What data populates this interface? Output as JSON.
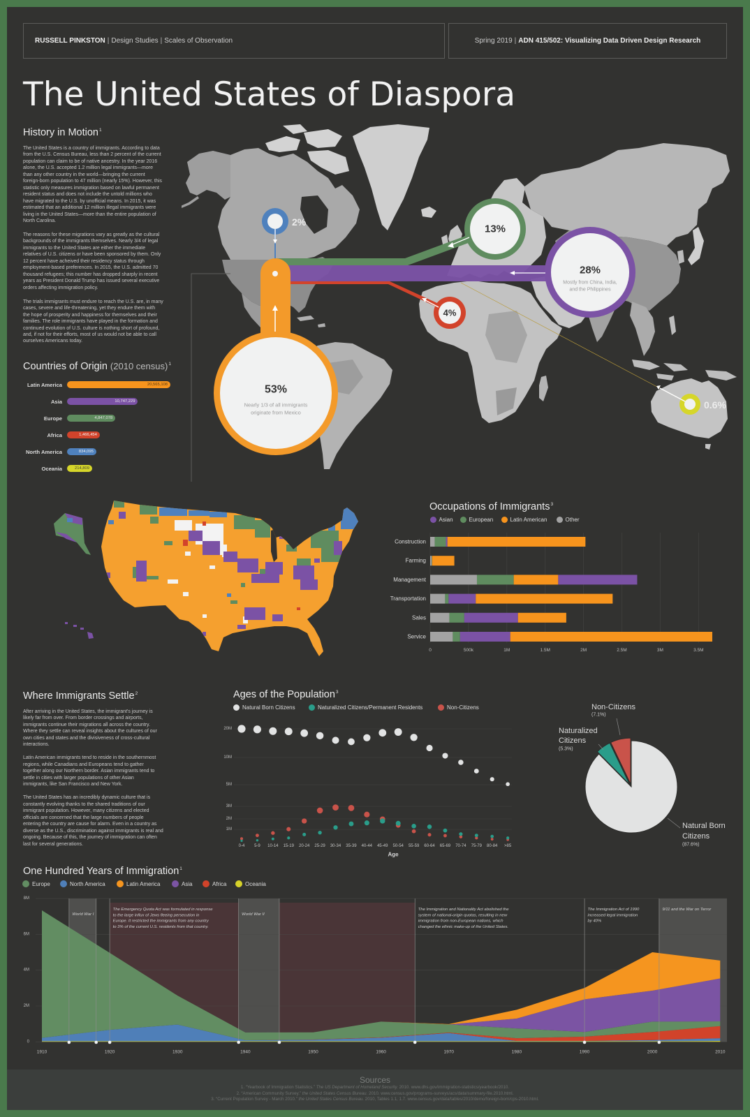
{
  "header": {
    "author": "RUSSELL PINKSTON",
    "separator": "|",
    "dept": "Design Studies",
    "project": "Scales of Observation",
    "term": "Spring 2019",
    "course": "ADN 415/502: Visualizing Data Driven Design Research"
  },
  "title": "The United States of Diaspora",
  "colors": {
    "background": "#323230",
    "border": "#4a7a4c",
    "latin_america": "#f7941d",
    "asia": "#7b52a5",
    "europe": "#5f8c5f",
    "africa": "#d2432b",
    "north_america": "#4f81bd",
    "oceania": "#d6d62a",
    "other": "#a3a3a3",
    "natural_born": "#e2e3e3",
    "naturalized": "#2a9d8a",
    "non_citizen": "#c9534a"
  },
  "history": {
    "heading": "History in Motion",
    "sup": "1",
    "paragraphs": [
      [
        "The United States is a country of immigrants. According to data",
        "from the U.S. Census Bureau, less than 2 percent of the current",
        "population can claim to be of native ancestry. In the year 2016",
        "alone, the U.S. accepted 1.2 million legal immigrants—more",
        "than any other country in the world—bringing the current",
        "foreign-born population to 47 million (nearly 15%). However, this",
        "statistic only measures immigration based on lawful permanent",
        "resident status and does not include the untold millions who",
        "have migrated to the U.S. by unofficial means. In 2015, it was",
        "estimated that an additional 12 million illegal immigrants were",
        "living in the United States—more than the entire population of",
        "North Carolina."
      ],
      [
        "The reasons for these migrations vary as greatly as the cultural",
        "backgrounds of the immigrants themselves. Nearly 3/4 of legal",
        "immigrants to the United States are either the immediate",
        "relatives of U.S. citizens or have been sponsored by them. Only",
        "12 percent have acheived their residency status through",
        "employment-based preferences. In 2015, the U.S. admitted 70",
        "thousand refugees; this number has dropped sharply in recent",
        "years as President Donald Trump has issued several executive",
        "orders affecting immigration policy."
      ],
      [
        "The trials immigrants must endure to reach the U.S. are, in many",
        "cases, severe and life-threatening, yet they endure them with",
        "the hope of prosperity and happiness for themselves and their",
        "families. The role immigrants have played in the formation and",
        "continued evolution of U.S. culture is nothing short of profound,",
        "and, if not for their efforts, most of us would not be able to call",
        "ourselves Americans today."
      ]
    ]
  },
  "origin": {
    "heading": "Countries of Origin",
    "subheading": "(2010 census)",
    "sup": "1",
    "items": [
      {
        "label": "Latin America",
        "value": "20,565,108",
        "color": "#f7941d",
        "text_color": "#5b3b12"
      },
      {
        "label": "Asia",
        "value": "10,747,229",
        "color": "#7b52a5",
        "text_color": "#eeeeee"
      },
      {
        "label": "Europe",
        "value": "4,847,078",
        "color": "#5f8c5f",
        "text_color": "#e6e6e6"
      },
      {
        "label": "Africa",
        "value": "1,466,454",
        "color": "#d2432b",
        "text_color": "#f2f2f2"
      },
      {
        "label": "North America",
        "value": "834,095",
        "color": "#4f81bd",
        "text_color": "#eeeeee"
      },
      {
        "label": "Oceania",
        "value": "214,809",
        "color": "#d6d62a",
        "text_color": "#444433"
      }
    ]
  },
  "world_map": {
    "north_america": {
      "pct": "2%"
    },
    "europe": {
      "pct": "13%"
    },
    "asia": {
      "pct": "28%",
      "note_line1": "Mostly from China, India,",
      "note_line2": "and the Philippines"
    },
    "africa": {
      "pct": "4%"
    },
    "latin_america": {
      "pct": "53%",
      "note_line1": "Nearly 1/3 of all immigrants",
      "note_line2": "originate from Mexico"
    },
    "oceania": {
      "pct": "0.6%"
    }
  },
  "settle": {
    "heading": "Where Immigrants Settle",
    "sup": "2",
    "paragraphs": [
      [
        "After arriving in the United States, the immigrant's journey is",
        "likely far from over. From border crossings and airports,",
        "immigrants continue their migrations all across the country.",
        "Where they settle can reveal insights about the cultures of our",
        "own cities and states and the divisiveness of cross-cultural",
        "interactions."
      ],
      [
        "Latin American immigrants tend to reside in the southernmost",
        "regions, while Canadians and Europeans tend to gather",
        "together along our Northern border. Asian immigrants tend to",
        "settle in cities with larger populations of other Asian",
        "immigrants, like San Francisco and New York."
      ],
      [
        "The United States has an incredibly dynamic culture that is",
        "constantly evolving thanks to the shared traditions of our",
        "immigrant population. However, many citizens and elected",
        "officials are concerned that the large numbers of people",
        "entering the country are cause for alarm. Even in a country as",
        "diverse as the U.S., discrimination against immigrants is real and",
        "ongoing. Because of this, the journey of immigration can often",
        "last for several generations."
      ]
    ]
  },
  "occupations": {
    "heading": "Occupations of Immigrants",
    "sup": "3",
    "legend": [
      {
        "label": "Asian",
        "color": "#7b52a5"
      },
      {
        "label": "European",
        "color": "#5f8c5f"
      },
      {
        "label": "Latin American",
        "color": "#f7941d"
      },
      {
        "label": "Other",
        "color": "#a3a3a3"
      }
    ]
  },
  "ages": {
    "heading": "Ages of the Population",
    "sup": "3",
    "legend": [
      {
        "label": "Natural Born Citizens",
        "color": "#e2e3e3"
      },
      {
        "label": "Naturalized Citizens/Permanent Residents",
        "color": "#2a9d8a"
      },
      {
        "label": "Non-Citizens",
        "color": "#c9534a"
      }
    ]
  },
  "pie": {
    "non_citizens": {
      "line1": "Non-Citizens",
      "pct": "(7.1%)"
    },
    "naturalized": {
      "line1": "Naturalized",
      "line2": "Citizens",
      "pct": "(5.3%)"
    },
    "natural_born": {
      "line1": "Natural Born",
      "line2": "Citizens",
      "pct": "(87.6%)"
    }
  },
  "century": {
    "heading": "One Hundred Years of Immigration",
    "sup": "1",
    "legend": [
      {
        "label": "Europe",
        "color": "#628d62"
      },
      {
        "label": "North America",
        "color": "#4f7fb8"
      },
      {
        "label": "Latin America",
        "color": "#f5951f"
      },
      {
        "label": "Asia",
        "color": "#7b54a3"
      },
      {
        "label": "Africa",
        "color": "#d1432a"
      },
      {
        "label": "Oceania",
        "color": "#d6d22a"
      }
    ]
  },
  "sources": {
    "heading": "Sources",
    "items": [
      {
        "pre": "1. “Yearbook of Immigration Statistics.” ",
        "ital": "The US Department of Homeland Security.",
        "post": " 2010. www.dhs.gov/immigration-statistics/yearbook/2010."
      },
      {
        "pre": "2. “American Community Survey.” ",
        "ital": "the United States Census Bureau.",
        "post": " 2010. www.census.gov/programs-surveys/acs/data/summary-file.2010.html."
      },
      {
        "pre": "3. “Current Population Survey - March 2010.” ",
        "ital": "the United States Census Bureau.",
        "post": " 2010, Tables 1.1, 1.7. www.census.gov/data/tables/2010/demo/foreign-born/cps-2010.html."
      }
    ]
  },
  "chart_data": [
    {
      "id": "countries_of_origin",
      "type": "bar",
      "orientation": "horizontal",
      "title": "Countries of Origin (2010 census)",
      "categories": [
        "Latin America",
        "Asia",
        "Europe",
        "Africa",
        "North America",
        "Oceania"
      ],
      "values": [
        20565108,
        10747229,
        4847078,
        1466454,
        834095,
        214809
      ],
      "colors": [
        "#f7941d",
        "#7b52a5",
        "#5f8c5f",
        "#d2432b",
        "#4f81bd",
        "#d6d62a"
      ],
      "xlabel": "",
      "ylabel": "",
      "grid": false
    },
    {
      "id": "origin_share_map",
      "type": "table",
      "categories": [
        "Latin America",
        "Asia",
        "Europe",
        "Africa",
        "North America",
        "Oceania"
      ],
      "values": [
        53,
        28,
        13,
        4,
        2,
        0.6
      ],
      "unit": "%",
      "annotations": [
        "Nearly 1/3 of all immigrants originate from Mexico",
        "Mostly from China, India, and the Philippines"
      ]
    },
    {
      "id": "occupations",
      "type": "bar",
      "orientation": "horizontal",
      "stacked": true,
      "title": "Occupations of Immigrants",
      "categories": [
        "Construction",
        "Farming",
        "Management",
        "Transportation",
        "Sales",
        "Service"
      ],
      "series": [
        {
          "name": "Asian",
          "values": [
            20000,
            0,
            1030000,
            355000,
            700000,
            655000
          ]
        },
        {
          "name": "European",
          "values": [
            145000,
            5000,
            480000,
            45000,
            195000,
            95000
          ]
        },
        {
          "name": "Latin American",
          "values": [
            1800000,
            290000,
            580000,
            1785000,
            630000,
            2685000
          ]
        },
        {
          "name": "Other",
          "values": [
            60000,
            20000,
            610000,
            195000,
            250000,
            295000
          ]
        }
      ],
      "segment_order": [
        [
          "Other",
          "European",
          "Asian",
          "Latin American"
        ],
        [
          "Other",
          "European",
          "Latin American"
        ],
        [
          "Other",
          "European",
          "Latin American",
          "Asian"
        ],
        [
          "Other",
          "European",
          "Asian",
          "Latin American"
        ],
        [
          "Other",
          "European",
          "Asian",
          "Latin American"
        ],
        [
          "Other",
          "European",
          "Asian",
          "Latin American"
        ]
      ],
      "series_colors": {
        "Asian": "#7b52a5",
        "European": "#5f8c5f",
        "Latin American": "#f7941d",
        "Other": "#a3a3a3"
      },
      "xticks": [
        "0",
        "500k",
        "1M",
        "1.5M",
        "2M",
        "2.5M",
        "3M",
        "3.5M"
      ],
      "xtick_values": [
        0,
        500000,
        1000000,
        1500000,
        2000000,
        2500000,
        3000000,
        3500000
      ],
      "xlim": [
        0,
        3700000
      ],
      "legend": [
        "Asian",
        "European",
        "Latin American",
        "Other"
      ],
      "legend_position": "top",
      "grid": true
    },
    {
      "id": "ages",
      "type": "scatter",
      "title": "Ages of the Population",
      "xlabel": "Age",
      "ylabel": "",
      "unit": "millions",
      "categories": [
        "0-4",
        "5-9",
        "10-14",
        "15-19",
        "20-24",
        "25-29",
        "30-34",
        "35-39",
        "40-44",
        "45-49",
        "50-54",
        "55-59",
        "60-64",
        "65-69",
        "70-74",
        "75-79",
        "80-84",
        ">85"
      ],
      "series": [
        {
          "name": "Natural Born Citizens",
          "color": "#e2e3e3",
          "values": [
            20.0,
            19.8,
            19.2,
            19.1,
            18.5,
            17.6,
            16.0,
            15.5,
            16.9,
            18.6,
            18.9,
            17.0,
            13.3,
            10.6,
            9.1,
            7.5,
            6.0,
            5.1
          ]
        },
        {
          "name": "Naturalized Citizens/Permanent Residents",
          "color": "#2a9d8a",
          "values": [
            0.09,
            0.13,
            0.24,
            0.32,
            0.59,
            0.74,
            1.18,
            1.53,
            1.62,
            1.8,
            1.58,
            1.31,
            1.25,
            0.91,
            0.63,
            0.52,
            0.44,
            0.32
          ]
        },
        {
          "name": "Non-Citizens",
          "color": "#c9534a",
          "values": [
            0.26,
            0.52,
            0.71,
            1.02,
            1.8,
            2.67,
            2.91,
            2.87,
            2.35,
            1.98,
            1.38,
            0.85,
            0.57,
            0.5,
            0.41,
            0.32,
            0.22,
            0.18
          ]
        }
      ],
      "yticks": [
        "20M",
        "10M",
        "5M",
        "3M",
        "2M",
        "1M"
      ],
      "ytick_values": [
        20,
        10,
        5,
        3,
        2,
        1
      ],
      "legend_position": "top",
      "grid": true
    },
    {
      "id": "citizenship",
      "type": "pie",
      "categories": [
        "Natural Born Citizens",
        "Naturalized Citizens",
        "Non-Citizens"
      ],
      "values": [
        87.6,
        5.3,
        7.1
      ],
      "colors": [
        "#e2e3e3",
        "#2a9d8a",
        "#c9534a"
      ],
      "unit": "%"
    },
    {
      "id": "century",
      "type": "area",
      "stacked": true,
      "title": "One Hundred Years of Immigration",
      "unit": "millions",
      "x": [
        1910,
        1920,
        1930,
        1940,
        1950,
        1960,
        1970,
        1980,
        1990,
        2000,
        2010
      ],
      "series": [
        {
          "name": "Oceania",
          "color": "#d6d22a",
          "values": [
            0.03,
            0.03,
            0.03,
            0.03,
            0.03,
            0.03,
            0.03,
            0.03,
            0.03,
            0.03,
            0.05
          ]
        },
        {
          "name": "North America",
          "color": "#4f7fb8",
          "values": [
            0.19,
            0.64,
            0.93,
            0.06,
            0.09,
            0.2,
            0.46,
            0.02,
            0.02,
            0.07,
            0.15
          ]
        },
        {
          "name": "Africa",
          "color": "#d1432a",
          "values": [
            0,
            0,
            0,
            0,
            0.01,
            0.02,
            0.03,
            0.15,
            0.24,
            0.45,
            0.68
          ]
        },
        {
          "name": "Europe",
          "color": "#628d62",
          "values": [
            7.12,
            4.3,
            1.62,
            0.43,
            0.4,
            0.88,
            0.45,
            0.55,
            0.26,
            0.58,
            0.26
          ]
        },
        {
          "name": "Asia",
          "color": "#7b54a3",
          "values": [
            0,
            0,
            0,
            0,
            0,
            0,
            0,
            0.55,
            1.82,
            1.73,
            2.4
          ]
        },
        {
          "name": "Latin America",
          "color": "#f5951f",
          "values": [
            0,
            0,
            0,
            0,
            0,
            0,
            0.02,
            0.49,
            0.64,
            2.14,
            1.0
          ]
        }
      ],
      "ylim": [
        0,
        8
      ],
      "yticks": [
        "0",
        "2M",
        "4M",
        "6M",
        "8M"
      ],
      "ytick_values": [
        0,
        2,
        4,
        6,
        8
      ],
      "xticks": [
        "1910",
        "1920",
        "1930",
        "1940",
        "1950",
        "1960",
        "1970",
        "1980",
        "1990",
        "2000",
        "2010"
      ],
      "legend": [
        "Europe",
        "North America",
        "Latin America",
        "Asia",
        "Africa",
        "Oceania"
      ],
      "legend_position": "top",
      "grid": true,
      "event_markers": [
        1914,
        1918,
        1920,
        1939,
        1945,
        1965,
        1990,
        2001
      ],
      "annotations": [
        {
          "type": "band",
          "start": 1914,
          "end": 1918,
          "fill": "#4f4f4d",
          "text": [
            "World War I"
          ]
        },
        {
          "type": "band",
          "start": 1920,
          "end": 1965,
          "fill": "#4a3537",
          "text": [
            "The Emergency Quota Act was formulated in response",
            "to the large influx of Jews fleeing persecution in",
            "Europe. It restricted the immigrants from any country",
            "to 3% of the current U.S. residents from that country."
          ]
        },
        {
          "type": "band",
          "start": 1939,
          "end": 1945,
          "fill": "#4f4f4d",
          "text": [
            "World War II"
          ]
        },
        {
          "type": "line",
          "at": 1965,
          "text": [
            "The Immigration and Nationality Act abolished the",
            "system of national-origin quotas, resulting in new",
            "immigration from non-European nations, which",
            "changed the ethnic make-up of the United States."
          ]
        },
        {
          "type": "line",
          "at": 1990,
          "text": [
            "The Immigration Act of 1990",
            "increased legal immigration",
            "by 40%"
          ]
        },
        {
          "type": "band",
          "start": 2001,
          "end": 2011,
          "fill": "#4f4f4d",
          "text": [
            "9/11 and the War on Terror"
          ]
        }
      ]
    }
  ]
}
